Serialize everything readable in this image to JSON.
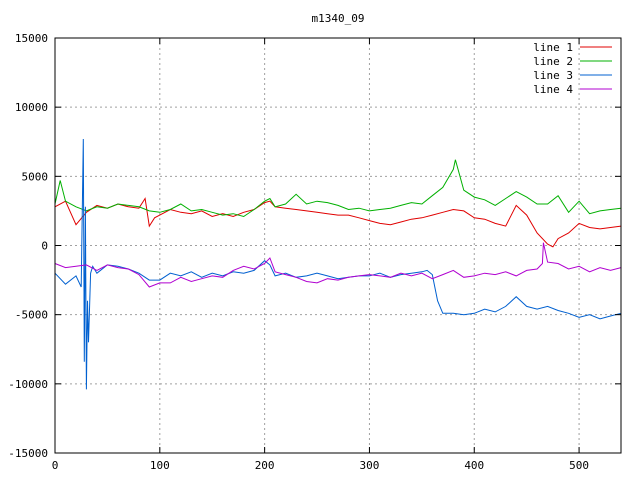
{
  "chart_data": {
    "type": "line",
    "title": "m1340_09",
    "xlabel": "",
    "ylabel": "",
    "xlim": [
      0,
      540
    ],
    "ylim": [
      -15000,
      15000
    ],
    "xticks": [
      0,
      100,
      200,
      300,
      400,
      500
    ],
    "yticks": [
      -15000,
      -10000,
      -5000,
      0,
      5000,
      10000,
      15000
    ],
    "grid": true,
    "legend_position": "top-right",
    "series": [
      {
        "name": "line 1",
        "color": "#e00000",
        "x": [
          0,
          10,
          20,
          30,
          40,
          50,
          60,
          70,
          80,
          86,
          90,
          95,
          100,
          110,
          120,
          130,
          140,
          150,
          160,
          170,
          180,
          190,
          200,
          205,
          210,
          220,
          230,
          240,
          250,
          260,
          270,
          280,
          290,
          300,
          310,
          320,
          330,
          340,
          350,
          360,
          370,
          380,
          390,
          400,
          410,
          420,
          430,
          440,
          450,
          460,
          470,
          475,
          480,
          490,
          500,
          510,
          520,
          530,
          540
        ],
        "y": [
          2800,
          3200,
          1500,
          2400,
          2900,
          2700,
          3000,
          2800,
          2700,
          3400,
          1400,
          2000,
          2200,
          2600,
          2400,
          2300,
          2500,
          2100,
          2300,
          2100,
          2400,
          2600,
          3100,
          3200,
          2800,
          2700,
          2600,
          2500,
          2400,
          2300,
          2200,
          2200,
          2000,
          1800,
          1600,
          1500,
          1700,
          1900,
          2000,
          2200,
          2400,
          2600,
          2500,
          2000,
          1900,
          1600,
          1400,
          2900,
          2200,
          900,
          100,
          -100,
          500,
          900,
          1600,
          1300,
          1200,
          1300,
          1400
        ]
      },
      {
        "name": "line 2",
        "color": "#00b000",
        "x": [
          0,
          5,
          10,
          20,
          30,
          40,
          50,
          60,
          70,
          80,
          90,
          100,
          110,
          120,
          130,
          140,
          150,
          160,
          170,
          180,
          190,
          200,
          205,
          210,
          220,
          230,
          240,
          250,
          260,
          270,
          280,
          290,
          300,
          310,
          320,
          330,
          340,
          350,
          360,
          370,
          380,
          382,
          390,
          400,
          410,
          420,
          430,
          440,
          450,
          460,
          470,
          480,
          490,
          500,
          510,
          520,
          530,
          540
        ],
        "y": [
          3000,
          4700,
          3200,
          2800,
          2500,
          2800,
          2700,
          3000,
          2900,
          2800,
          2500,
          2400,
          2600,
          3000,
          2500,
          2600,
          2400,
          2200,
          2300,
          2100,
          2600,
          3200,
          3400,
          2800,
          3000,
          3700,
          3000,
          3200,
          3100,
          2900,
          2600,
          2700,
          2500,
          2600,
          2700,
          2900,
          3100,
          3000,
          3600,
          4200,
          5500,
          6200,
          4000,
          3500,
          3300,
          2900,
          3400,
          3900,
          3500,
          3000,
          3000,
          3600,
          2400,
          3200,
          2300,
          2500,
          2600,
          2700
        ]
      },
      {
        "name": "line 3",
        "color": "#0060d0",
        "x": [
          0,
          10,
          20,
          25,
          27,
          28,
          29,
          30,
          31,
          32,
          34,
          36,
          40,
          50,
          60,
          70,
          80,
          90,
          100,
          110,
          120,
          130,
          140,
          150,
          160,
          170,
          180,
          190,
          200,
          205,
          210,
          220,
          230,
          240,
          250,
          260,
          270,
          280,
          290,
          300,
          310,
          320,
          330,
          340,
          350,
          355,
          360,
          365,
          370,
          380,
          390,
          400,
          410,
          420,
          430,
          440,
          450,
          460,
          470,
          480,
          490,
          500,
          510,
          520,
          530,
          540
        ],
        "y": [
          -2000,
          -2800,
          -2200,
          -3000,
          7700,
          -8400,
          2800,
          -10400,
          -4000,
          -7000,
          -2000,
          -1500,
          -2000,
          -1400,
          -1500,
          -1700,
          -2000,
          -2500,
          -2500,
          -2000,
          -2200,
          -1900,
          -2300,
          -2000,
          -2200,
          -1900,
          -2000,
          -1800,
          -1100,
          -1400,
          -2200,
          -2000,
          -2300,
          -2200,
          -2000,
          -2200,
          -2400,
          -2300,
          -2200,
          -2200,
          -2000,
          -2300,
          -2100,
          -2000,
          -1900,
          -1800,
          -2100,
          -4000,
          -4900,
          -4900,
          -5000,
          -4900,
          -4600,
          -4800,
          -4400,
          -3700,
          -4400,
          -4600,
          -4400,
          -4700,
          -4900,
          -5200,
          -5000,
          -5300,
          -5100,
          -4900
        ]
      },
      {
        "name": "line 4",
        "color": "#b000d0",
        "x": [
          0,
          10,
          20,
          30,
          40,
          50,
          60,
          70,
          80,
          90,
          100,
          110,
          120,
          130,
          140,
          150,
          160,
          170,
          180,
          190,
          200,
          205,
          210,
          220,
          230,
          240,
          250,
          260,
          270,
          280,
          290,
          300,
          310,
          320,
          330,
          340,
          350,
          360,
          370,
          380,
          390,
          400,
          410,
          420,
          430,
          440,
          450,
          460,
          465,
          466,
          470,
          480,
          490,
          500,
          510,
          520,
          530,
          540
        ],
        "y": [
          -1300,
          -1600,
          -1500,
          -1400,
          -1800,
          -1400,
          -1600,
          -1700,
          -2100,
          -3000,
          -2700,
          -2700,
          -2300,
          -2600,
          -2400,
          -2200,
          -2300,
          -1800,
          -1500,
          -1700,
          -1300,
          -900,
          -1900,
          -2100,
          -2300,
          -2600,
          -2700,
          -2400,
          -2500,
          -2300,
          -2200,
          -2100,
          -2200,
          -2300,
          -2000,
          -2200,
          -2000,
          -2400,
          -2100,
          -1800,
          -2300,
          -2200,
          -2000,
          -2100,
          -1900,
          -2200,
          -1800,
          -1700,
          -1300,
          200,
          -1200,
          -1300,
          -1700,
          -1500,
          -1900,
          -1600,
          -1800,
          -1600
        ]
      }
    ]
  }
}
